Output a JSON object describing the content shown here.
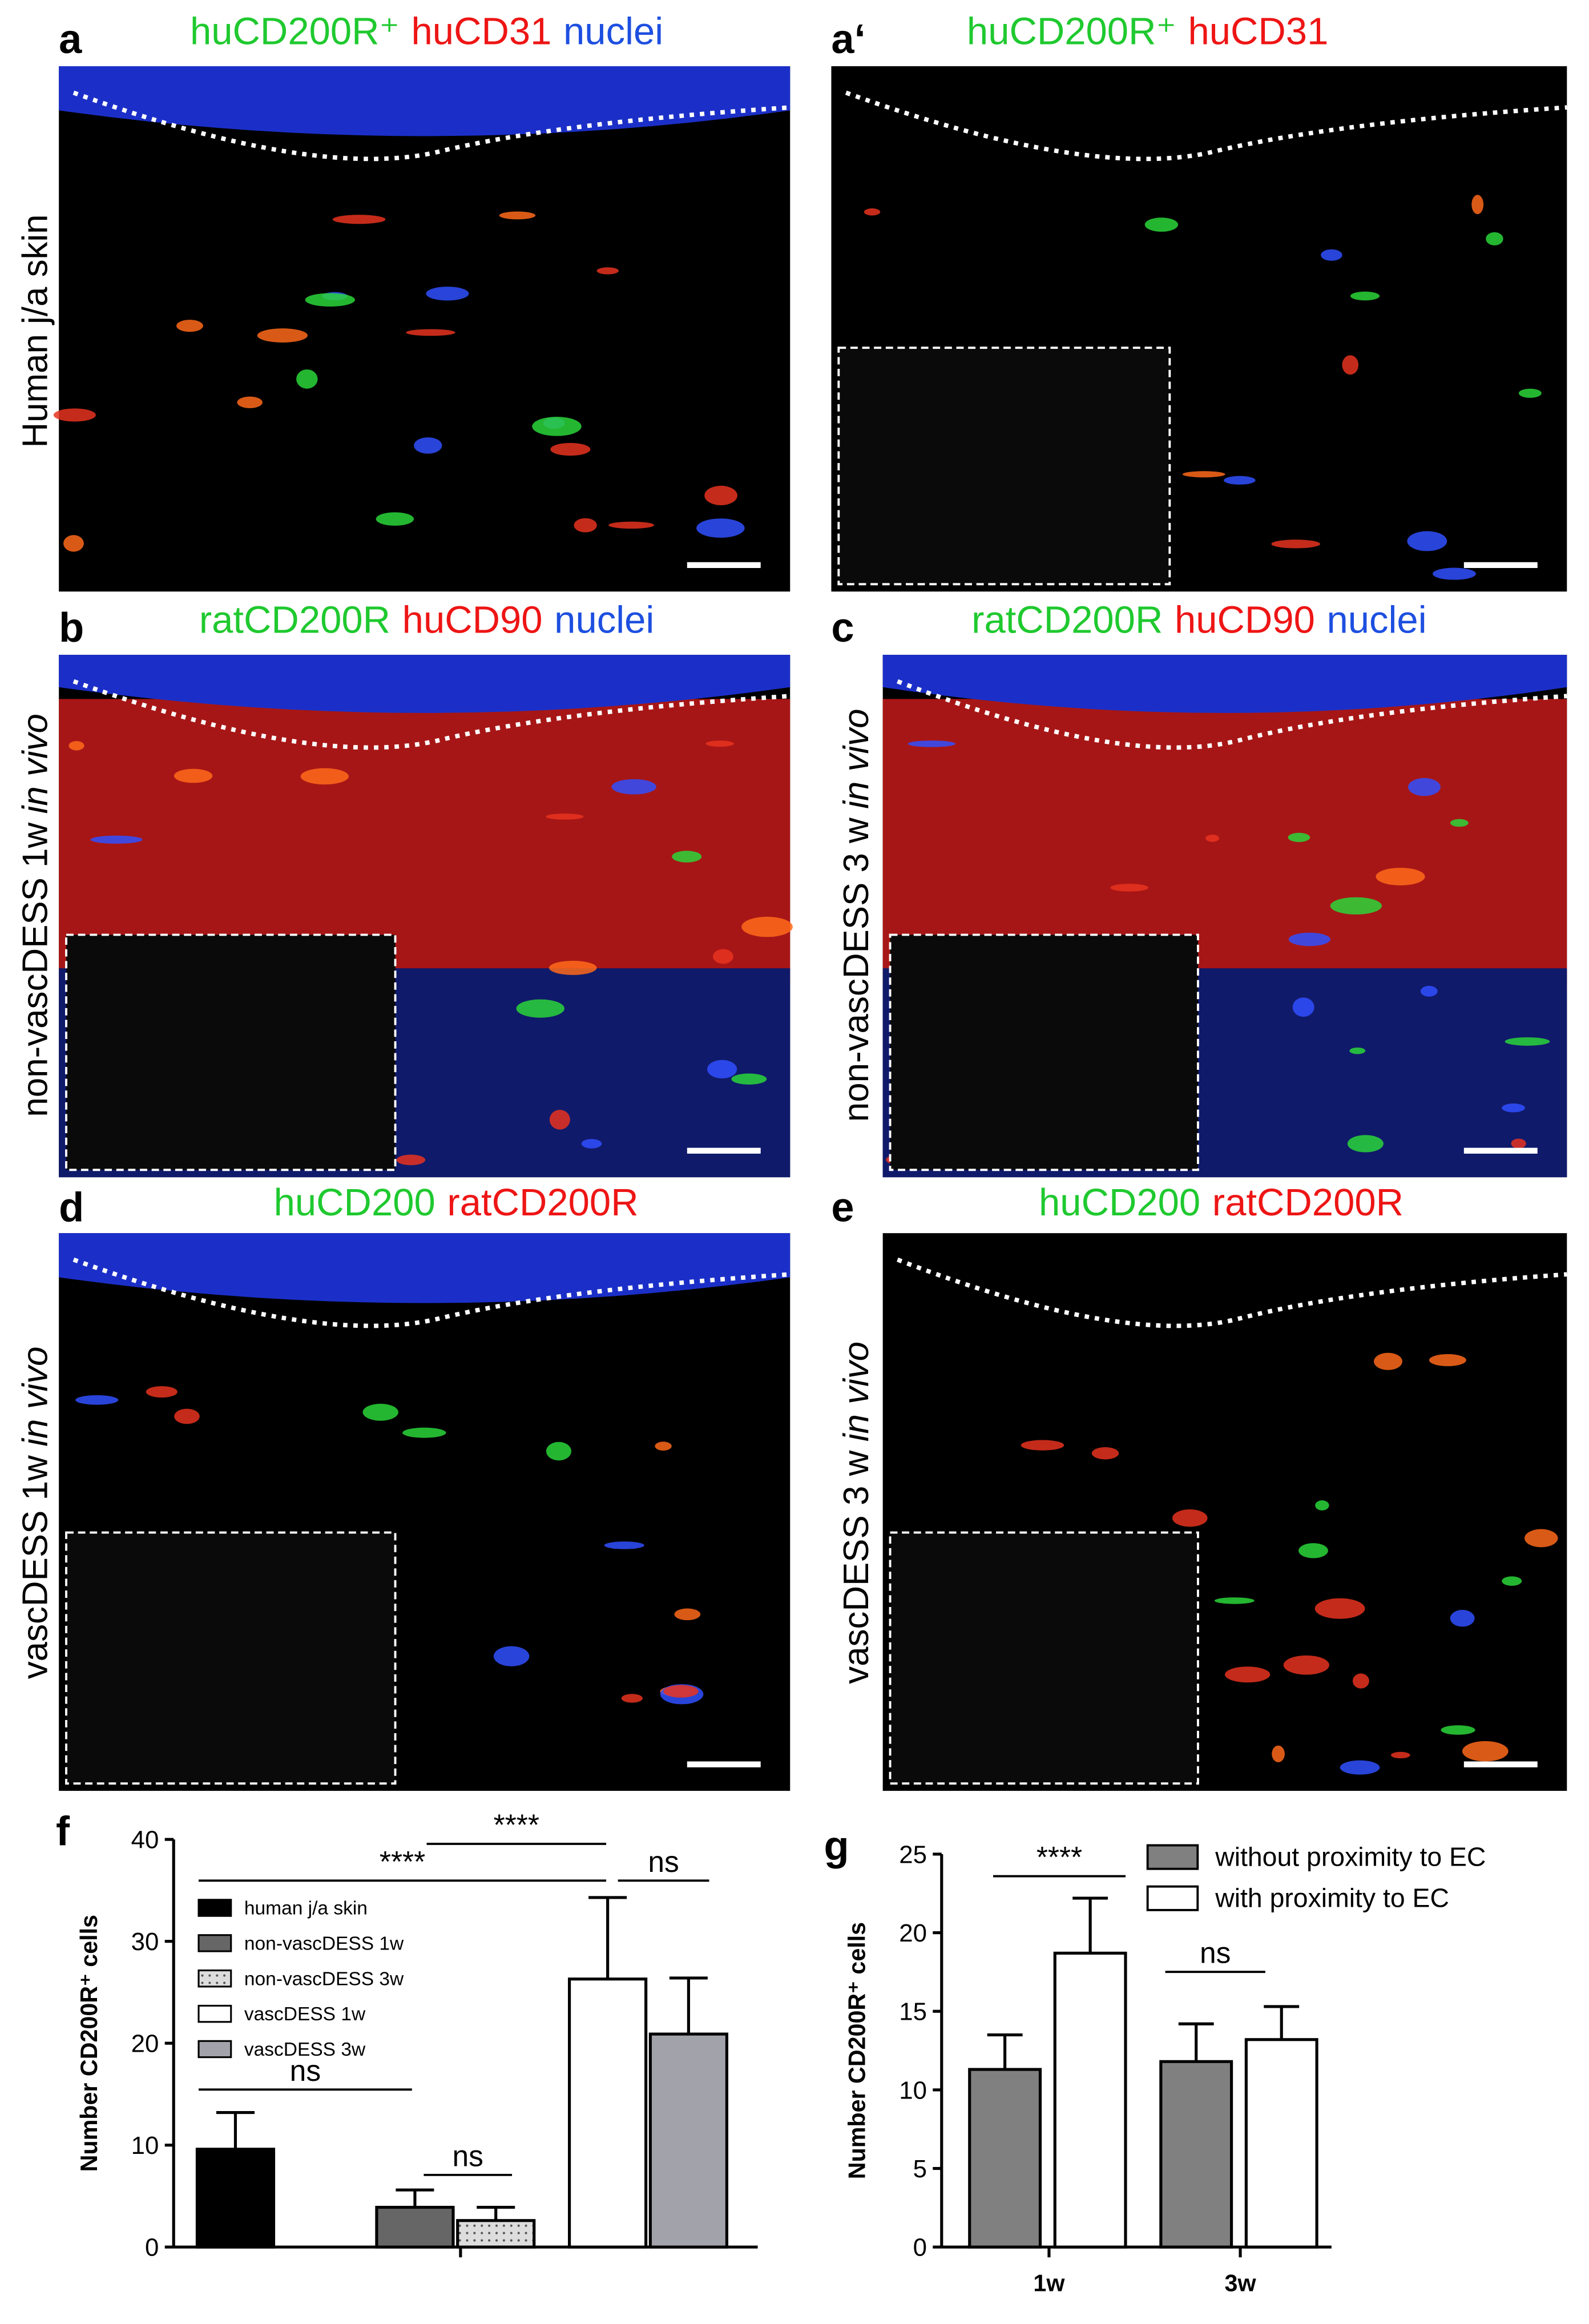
{
  "panels": [
    {
      "label": "a",
      "title": [
        "huCD200R⁺",
        "huCD31",
        "nuclei"
      ],
      "side_label": [
        "Human j/a skin"
      ]
    },
    {
      "label": "a‘",
      "title": [
        "huCD200R⁺",
        "huCD31"
      ]
    },
    {
      "label": "b",
      "title": [
        "ratCD200R",
        "huCD90",
        "nuclei"
      ],
      "side_label": [
        "non-vascDESS 1w",
        "in vivo"
      ]
    },
    {
      "label": "c",
      "title": [
        "ratCD200R",
        "huCD90",
        "nuclei"
      ],
      "side_label": [
        "non-vascDESS 3 w",
        "in vivo"
      ]
    },
    {
      "label": "d",
      "title": [
        "huCD200",
        "ratCD200R"
      ],
      "side_label": [
        "vascDESS 1w",
        "in vivo"
      ]
    },
    {
      "label": "e",
      "title": [
        "huCD200",
        "ratCD200R"
      ],
      "side_label": [
        "vascDESS 3 w",
        "in vivo"
      ]
    }
  ],
  "chart_data": [
    {
      "type": "bar",
      "label": "f",
      "y_label": "Number CD200R⁺ cells",
      "categories": [
        "human j/a skin",
        "non-vascDESS 1w",
        "non-vascDESS 3w",
        "vascDESS 1w",
        "vascDESS 3w"
      ],
      "values": [
        9.6,
        3.9,
        2.6,
        26.3,
        20.9
      ],
      "errors": [
        3.6,
        1.7,
        1.3,
        8.0,
        5.5
      ],
      "colors": [
        "#000000",
        "#666666",
        "#dddddd",
        "#ffffff",
        "#a2a2aa"
      ],
      "ylim": [
        0,
        40
      ],
      "yticks": [
        0,
        10,
        20,
        30,
        40
      ],
      "annotations": [
        "ns",
        "ns",
        "****",
        "****",
        "ns"
      ]
    },
    {
      "type": "grouped_bar",
      "label": "g",
      "y_label": "Number CD200R⁺ cells",
      "categories": [
        "1w",
        "3w"
      ],
      "series": [
        {
          "name": "without proximity to EC",
          "color": "#808080",
          "values": [
            11.3,
            11.8
          ],
          "errors": [
            2.2,
            2.4
          ]
        },
        {
          "name": "with proximity to EC",
          "color": "#ffffff",
          "values": [
            18.7,
            13.2
          ],
          "errors": [
            3.5,
            2.1
          ]
        }
      ],
      "ylim": [
        0,
        25
      ],
      "yticks": [
        0,
        5,
        10,
        15,
        20,
        25
      ],
      "annotations": [
        "****",
        "ns"
      ]
    }
  ]
}
